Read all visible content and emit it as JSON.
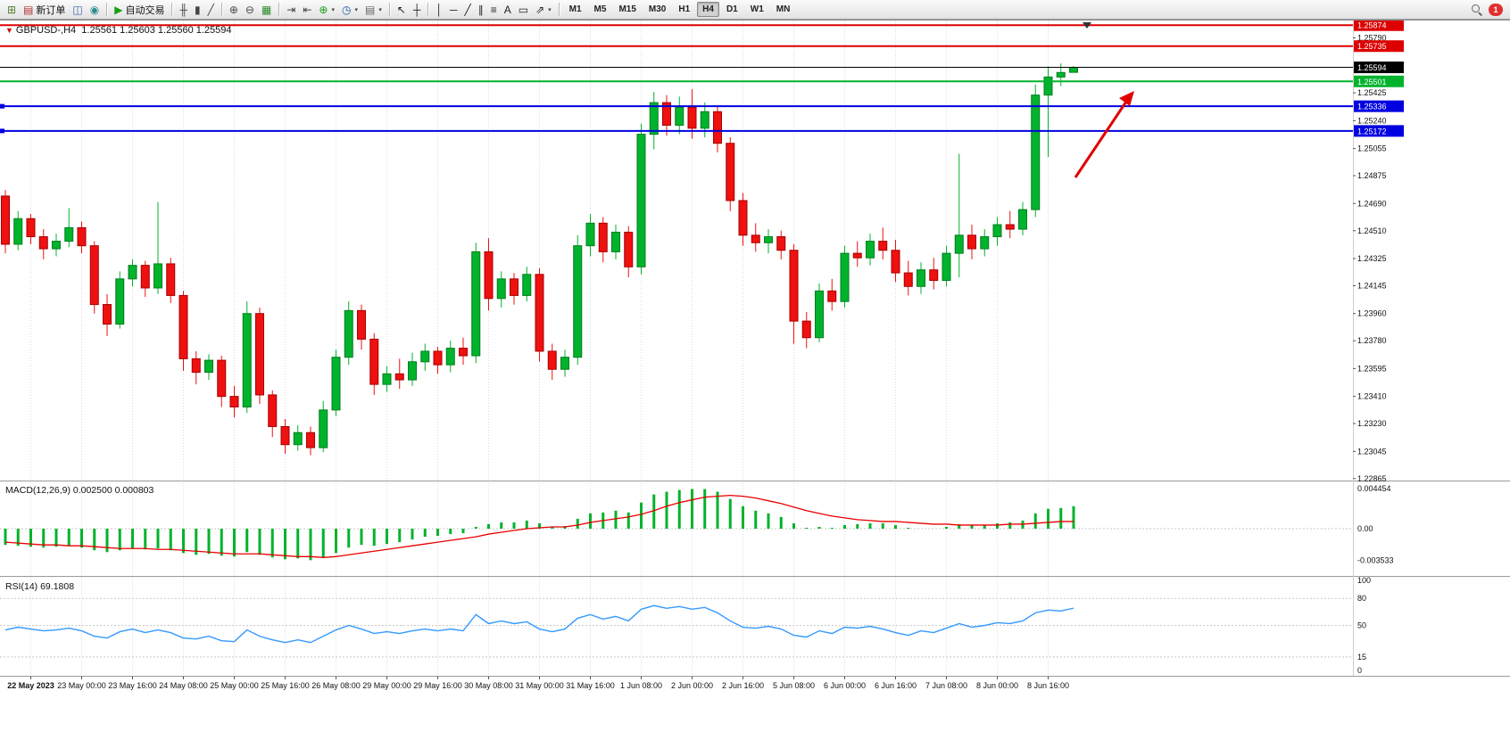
{
  "toolbar": {
    "items": [
      {
        "name": "new-chart-button",
        "icon": "chart-plus-icon",
        "glyph": "⊞",
        "color": "#567d2e"
      },
      {
        "name": "new-order-button",
        "icon": "order-icon",
        "glyph": "▤",
        "color": "#b03030",
        "label": "新订单"
      },
      {
        "name": "profiles-button",
        "icon": "profiles-icon",
        "glyph": "◫",
        "color": "#3b5fb0"
      },
      {
        "name": "quotes-refresh-button",
        "icon": "globe-icon",
        "glyph": "◉",
        "color": "#2e8b8b"
      },
      {
        "sep": true
      },
      {
        "name": "autotrading-button",
        "icon": "play-icon",
        "glyph": "▶",
        "color": "#18a018",
        "label": "自动交易"
      },
      {
        "sep": true
      },
      {
        "name": "bar-chart-button",
        "icon": "bars-icon",
        "glyph": "╫",
        "color": "#444444"
      },
      {
        "name": "candlestick-chart-button",
        "icon": "candlestick-icon",
        "glyph": "▮",
        "color": "#444444"
      },
      {
        "name": "line-chart-button",
        "icon": "line-icon",
        "glyph": "╱",
        "color": "#444444"
      },
      {
        "sep": true
      },
      {
        "name": "zoom-in-button",
        "icon": "zoom-in-icon",
        "glyph": "⊕",
        "color": "#444444"
      },
      {
        "name": "zoom-out-button",
        "icon": "zoom-out-icon",
        "glyph": "⊖",
        "color": "#444444"
      },
      {
        "name": "tile-windows-button",
        "icon": "tile-icon",
        "glyph": "▦",
        "color": "#2e8b2e"
      },
      {
        "sep": true
      },
      {
        "name": "auto-scroll-button",
        "icon": "auto-scroll-icon",
        "glyph": "⇥",
        "color": "#444444"
      },
      {
        "name": "chart-shift-button",
        "icon": "chart-shift-icon",
        "glyph": "⇤",
        "color": "#444444"
      },
      {
        "name": "indicators-button",
        "icon": "indicator-plus-icon",
        "glyph": "⊕",
        "color": "#18a018",
        "caret": true
      },
      {
        "name": "periods-button",
        "icon": "clock-icon",
        "glyph": "◷",
        "color": "#2255aa",
        "caret": true
      },
      {
        "name": "templates-button",
        "icon": "template-icon",
        "glyph": "▤",
        "color": "#666666",
        "caret": true
      },
      {
        "sep": true
      },
      {
        "name": "cursor-button",
        "icon": "cursor-icon",
        "glyph": "↖",
        "color": "#222222"
      },
      {
        "name": "crosshair-button",
        "icon": "crosshair-icon",
        "glyph": "┼",
        "color": "#222222"
      },
      {
        "sep": true
      },
      {
        "name": "vertical-line-button",
        "icon": "vertical-line-icon",
        "glyph": "│",
        "color": "#222222"
      },
      {
        "name": "horizontal-line-button",
        "icon": "horizontal-line-icon",
        "glyph": "─",
        "color": "#222222"
      },
      {
        "name": "trendline-button",
        "icon": "trendline-icon",
        "glyph": "╱",
        "color": "#222222"
      },
      {
        "name": "channel-button",
        "icon": "channel-icon",
        "glyph": "∥",
        "color": "#222222"
      },
      {
        "name": "fibonacci-button",
        "icon": "fibonacci-icon",
        "glyph": "≡",
        "color": "#222222"
      },
      {
        "name": "text-button",
        "icon": "text-icon",
        "glyph": "A",
        "color": "#222222"
      },
      {
        "name": "label-button",
        "icon": "label-icon",
        "glyph": "▭",
        "color": "#222222"
      },
      {
        "name": "shapes-button",
        "icon": "arrows-icon",
        "glyph": "⇗",
        "color": "#222222",
        "caret": true
      },
      {
        "sep": true
      }
    ],
    "timeframes": [
      "M1",
      "M5",
      "M15",
      "M30",
      "H1",
      "H4",
      "D1",
      "W1",
      "MN"
    ],
    "active_timeframe": "H4",
    "notification_badge": "1"
  },
  "chart": {
    "title_symbol": "GBPUSD-,H4",
    "title_ohlc": "1.25561 1.25603 1.25560 1.25594",
    "macd_label": "MACD(12,26,9) 0.002500 0.000803",
    "rsi_label": "RSI(14) 69.1808",
    "lines": [
      {
        "name": "resistance-line-upper",
        "price": 1.25874,
        "label": "1.25874",
        "color": "#dd0000",
        "width": 2
      },
      {
        "name": "resistance-line-lower",
        "price": 1.25735,
        "label": "1.25735",
        "color": "#dd0000",
        "width": 2
      },
      {
        "name": "current-price-line",
        "price": 1.25594,
        "label": "1.25594",
        "color": "#000000",
        "width": 1
      },
      {
        "name": "support-line-green",
        "price": 1.25501,
        "label": "1.25501",
        "color": "#00b32c",
        "width": 2
      },
      {
        "name": "support-line-blue-upper",
        "price": 1.25336,
        "label": "1.25336",
        "color": "#0000e0",
        "width": 2,
        "handles": true
      },
      {
        "name": "support-line-blue-lower",
        "price": 1.25172,
        "label": "1.25172",
        "color": "#0000e0",
        "width": 2,
        "handles": true
      }
    ]
  },
  "chart_data": {
    "type": "candlestick",
    "symbol": "GBPUSD",
    "timeframe": "H4",
    "candles": [
      [
        1.2474,
        1.2478,
        1.2436,
        1.2442
      ],
      [
        1.2442,
        1.2464,
        1.2438,
        1.2459
      ],
      [
        1.2459,
        1.2462,
        1.2442,
        1.2447
      ],
      [
        1.2447,
        1.2452,
        1.2432,
        1.2439
      ],
      [
        1.2439,
        1.2449,
        1.2434,
        1.2444
      ],
      [
        1.2444,
        1.2466,
        1.244,
        1.2453
      ],
      [
        1.2453,
        1.2457,
        1.2436,
        1.2441
      ],
      [
        1.2441,
        1.2444,
        1.2396,
        1.2402
      ],
      [
        1.2402,
        1.2409,
        1.2381,
        1.2389
      ],
      [
        1.2389,
        1.2424,
        1.2386,
        1.2419
      ],
      [
        1.2419,
        1.2432,
        1.2414,
        1.2428
      ],
      [
        1.2428,
        1.2431,
        1.2407,
        1.2413
      ],
      [
        1.2413,
        1.247,
        1.2409,
        1.2429
      ],
      [
        1.2429,
        1.2433,
        1.2403,
        1.2408
      ],
      [
        1.2408,
        1.2411,
        1.2358,
        1.2366
      ],
      [
        1.2366,
        1.2371,
        1.2349,
        1.2357
      ],
      [
        1.2357,
        1.2369,
        1.2352,
        1.2365
      ],
      [
        1.2365,
        1.2368,
        1.2334,
        1.2341
      ],
      [
        1.2341,
        1.2348,
        1.2327,
        1.2334
      ],
      [
        1.2334,
        1.2404,
        1.233,
        1.2396
      ],
      [
        1.2396,
        1.24,
        1.2336,
        1.2342
      ],
      [
        1.2342,
        1.2345,
        1.2314,
        1.2321
      ],
      [
        1.2321,
        1.2326,
        1.2303,
        1.2309
      ],
      [
        1.2309,
        1.2322,
        1.2305,
        1.2317
      ],
      [
        1.2317,
        1.2321,
        1.2302,
        1.2307
      ],
      [
        1.2307,
        1.2338,
        1.2304,
        1.2332
      ],
      [
        1.2332,
        1.2372,
        1.2328,
        1.2367
      ],
      [
        1.2367,
        1.2404,
        1.2362,
        1.2398
      ],
      [
        1.2398,
        1.2402,
        1.2372,
        1.2379
      ],
      [
        1.2379,
        1.2383,
        1.2342,
        1.2349
      ],
      [
        1.2349,
        1.2361,
        1.2344,
        1.2356
      ],
      [
        1.2356,
        1.2366,
        1.2346,
        1.2352
      ],
      [
        1.2352,
        1.237,
        1.2348,
        1.2364
      ],
      [
        1.2364,
        1.2376,
        1.2358,
        1.2371
      ],
      [
        1.2371,
        1.2374,
        1.2356,
        1.2362
      ],
      [
        1.2362,
        1.2378,
        1.2357,
        1.2373
      ],
      [
        1.2373,
        1.238,
        1.2362,
        1.2368
      ],
      [
        1.2368,
        1.2443,
        1.2363,
        1.2437
      ],
      [
        1.2437,
        1.2446,
        1.2398,
        1.2406
      ],
      [
        1.2406,
        1.2424,
        1.24,
        1.2419
      ],
      [
        1.2419,
        1.2423,
        1.2402,
        1.2408
      ],
      [
        1.2408,
        1.2427,
        1.2404,
        1.2422
      ],
      [
        1.2422,
        1.2426,
        1.2364,
        1.2371
      ],
      [
        1.2371,
        1.2376,
        1.2352,
        1.2359
      ],
      [
        1.2359,
        1.2372,
        1.2354,
        1.2367
      ],
      [
        1.2367,
        1.2448,
        1.2362,
        1.2441
      ],
      [
        1.2441,
        1.2462,
        1.2434,
        1.2456
      ],
      [
        1.2456,
        1.246,
        1.243,
        1.2437
      ],
      [
        1.2437,
        1.2455,
        1.2432,
        1.245
      ],
      [
        1.245,
        1.2454,
        1.242,
        1.2427
      ],
      [
        1.2427,
        1.2522,
        1.2422,
        1.2515
      ],
      [
        1.2515,
        1.2543,
        1.2505,
        1.2536
      ],
      [
        1.2536,
        1.2541,
        1.2514,
        1.2521
      ],
      [
        1.2521,
        1.254,
        1.2515,
        1.2533
      ],
      [
        1.2533,
        1.2545,
        1.2512,
        1.2519
      ],
      [
        1.2519,
        1.2536,
        1.2513,
        1.253
      ],
      [
        1.253,
        1.2534,
        1.2503,
        1.2509
      ],
      [
        1.2509,
        1.2513,
        1.2464,
        1.2471
      ],
      [
        1.2471,
        1.2476,
        1.2441,
        1.2448
      ],
      [
        1.2448,
        1.2456,
        1.2437,
        1.2443
      ],
      [
        1.2443,
        1.2452,
        1.2436,
        1.2447
      ],
      [
        1.2447,
        1.2451,
        1.2432,
        1.2438
      ],
      [
        1.2438,
        1.2442,
        1.2376,
        1.2391
      ],
      [
        1.2391,
        1.2397,
        1.2373,
        1.238
      ],
      [
        1.238,
        1.2416,
        1.2377,
        1.2411
      ],
      [
        1.2411,
        1.2419,
        1.2398,
        1.2404
      ],
      [
        1.2404,
        1.2441,
        1.24,
        1.2436
      ],
      [
        1.2436,
        1.2444,
        1.2427,
        1.2433
      ],
      [
        1.2433,
        1.2449,
        1.2428,
        1.2444
      ],
      [
        1.2444,
        1.2453,
        1.2432,
        1.2438
      ],
      [
        1.2438,
        1.2445,
        1.2417,
        1.2423
      ],
      [
        1.2423,
        1.2431,
        1.2408,
        1.2414
      ],
      [
        1.2414,
        1.243,
        1.2409,
        1.2425
      ],
      [
        1.2425,
        1.2433,
        1.2412,
        1.2418
      ],
      [
        1.2418,
        1.2441,
        1.2414,
        1.2436
      ],
      [
        1.2436,
        1.2502,
        1.242,
        1.2448
      ],
      [
        1.2448,
        1.2455,
        1.2432,
        1.2439
      ],
      [
        1.2439,
        1.2452,
        1.2434,
        1.2447
      ],
      [
        1.2447,
        1.246,
        1.2441,
        1.2455
      ],
      [
        1.2455,
        1.2464,
        1.2446,
        1.2452
      ],
      [
        1.2452,
        1.247,
        1.2448,
        1.2465
      ],
      [
        1.2465,
        1.2548,
        1.246,
        1.2541
      ],
      [
        1.2541,
        1.256,
        1.25,
        1.2553
      ],
      [
        1.2553,
        1.2562,
        1.2547,
        1.2556
      ],
      [
        1.25561,
        1.25603,
        1.2556,
        1.25594
      ]
    ],
    "price_axis_ticks": [
      "1.25790",
      "1.25425",
      "1.25240",
      "1.25055",
      "1.24875",
      "1.24690",
      "1.24510",
      "1.24325",
      "1.24145",
      "1.23960",
      "1.23780",
      "1.23595",
      "1.23410",
      "1.23230",
      "1.23045",
      "1.22865"
    ],
    "date_labels": [
      "22 May 2023",
      "23 May 00:00",
      "23 May 16:00",
      "24 May 08:00",
      "25 May 00:00",
      "25 May 16:00",
      "26 May 08:00",
      "29 May 00:00",
      "29 May 16:00",
      "30 May 08:00",
      "31 May 00:00",
      "31 May 16:00",
      "1 Jun 08:00",
      "2 Jun 00:00",
      "2 Jun 16:00",
      "5 Jun 08:00",
      "6 Jun 00:00",
      "6 Jun 16:00",
      "7 Jun 08:00",
      "8 Jun 00:00",
      "8 Jun 16:00"
    ],
    "macd": [
      -0.0018,
      -0.0019,
      -0.002,
      -0.0021,
      -0.002,
      -0.0019,
      -0.0021,
      -0.0024,
      -0.0026,
      -0.0024,
      -0.0022,
      -0.0023,
      -0.0022,
      -0.0024,
      -0.0027,
      -0.0029,
      -0.0028,
      -0.003,
      -0.0031,
      -0.0026,
      -0.0029,
      -0.0032,
      -0.0034,
      -0.0033,
      -0.0035,
      -0.0032,
      -0.0027,
      -0.0021,
      -0.0018,
      -0.0019,
      -0.0017,
      -0.0015,
      -0.0012,
      -0.0009,
      -0.0008,
      -0.0006,
      -0.0005,
      0.0002,
      0.0005,
      0.0007,
      0.0007,
      0.0009,
      0.0006,
      0.0002,
      0.0003,
      0.0011,
      0.0017,
      0.0018,
      0.002,
      0.0018,
      0.0029,
      0.0038,
      0.0041,
      0.0043,
      0.0044,
      0.0044,
      0.0041,
      0.0033,
      0.0025,
      0.002,
      0.0017,
      0.0013,
      0.0006,
      0.0001,
      0.0002,
      0.0001,
      0.0004,
      0.0005,
      0.0006,
      0.0006,
      0.0004,
      0.0001,
      0.0,
      0.0,
      0.0002,
      0.0005,
      0.0004,
      0.0004,
      0.0006,
      0.0007,
      0.0009,
      0.0017,
      0.0022,
      0.0023,
      0.0025
    ],
    "macd_signal": [
      -0.0015,
      -0.0016,
      -0.0017,
      -0.0018,
      -0.0018,
      -0.0019,
      -0.0019,
      -0.002,
      -0.0021,
      -0.0022,
      -0.0022,
      -0.0022,
      -0.0023,
      -0.0023,
      -0.0024,
      -0.0025,
      -0.0026,
      -0.0027,
      -0.0028,
      -0.0028,
      -0.0028,
      -0.0029,
      -0.003,
      -0.0031,
      -0.0031,
      -0.0032,
      -0.0031,
      -0.0029,
      -0.0027,
      -0.0025,
      -0.0023,
      -0.0021,
      -0.0019,
      -0.0017,
      -0.0015,
      -0.0013,
      -0.0011,
      -0.0009,
      -0.0006,
      -0.0004,
      -0.0002,
      0.0,
      0.0001,
      0.0002,
      0.0002,
      0.0004,
      0.0007,
      0.0009,
      0.0011,
      0.0013,
      0.0016,
      0.002,
      0.0025,
      0.0029,
      0.0032,
      0.0035,
      0.0036,
      0.0037,
      0.0036,
      0.0034,
      0.0031,
      0.0028,
      0.0024,
      0.002,
      0.0017,
      0.0014,
      0.0012,
      0.001,
      0.0009,
      0.0008,
      0.0008,
      0.0007,
      0.0006,
      0.0005,
      0.0005,
      0.0004,
      0.0004,
      0.0004,
      0.0004,
      0.0005,
      0.0005,
      0.0006,
      0.0007,
      0.0008,
      0.0008
    ],
    "macd_axis": [
      {
        "value": 0.004454,
        "label": "0.004454"
      },
      {
        "value": 0,
        "label": "0.00"
      },
      {
        "value": -0.003533,
        "label": "-0.003533"
      }
    ],
    "rsi": [
      45,
      48,
      46,
      44,
      45,
      47,
      44,
      38,
      36,
      43,
      46,
      42,
      45,
      42,
      36,
      35,
      38,
      33,
      32,
      45,
      38,
      34,
      31,
      34,
      31,
      38,
      45,
      50,
      46,
      41,
      43,
      41,
      44,
      46,
      44,
      46,
      44,
      62,
      52,
      55,
      52,
      54,
      46,
      43,
      46,
      58,
      62,
      57,
      60,
      55,
      68,
      72,
      69,
      71,
      68,
      70,
      64,
      55,
      48,
      47,
      49,
      46,
      39,
      37,
      44,
      41,
      48,
      47,
      49,
      46,
      42,
      39,
      44,
      42,
      47,
      52,
      48,
      50,
      53,
      52,
      55,
      64,
      67,
      66,
      69.18
    ],
    "rsi_axis": [
      {
        "value": 100,
        "label": "100"
      },
      {
        "value": 80,
        "label": "80"
      },
      {
        "value": 50,
        "label": "50"
      },
      {
        "value": 15,
        "label": "15"
      },
      {
        "value": 0,
        "label": "0"
      }
    ],
    "rsi_levels": [
      80,
      50,
      15
    ]
  }
}
